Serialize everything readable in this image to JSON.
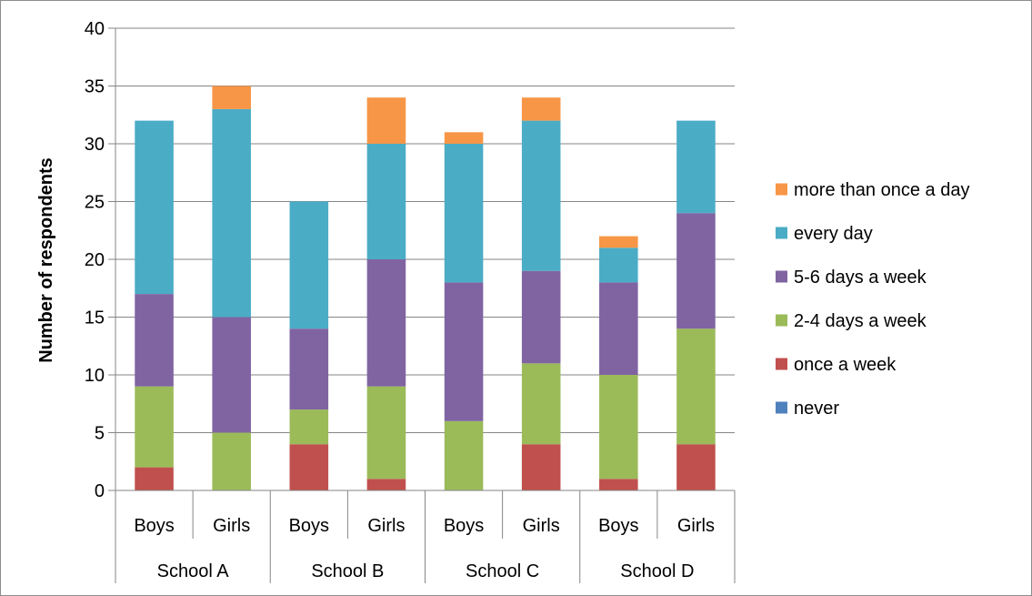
{
  "chart_data": {
    "type": "bar",
    "stacked": true,
    "title": "",
    "xlabel": "",
    "ylabel": "Number of respondents",
    "ylim": [
      0,
      40
    ],
    "yticks": [
      0,
      5,
      10,
      15,
      20,
      25,
      30,
      35,
      40
    ],
    "grid": true,
    "legend_position": "right",
    "groups": [
      {
        "label": "School A",
        "categories": [
          "Boys",
          "Girls"
        ]
      },
      {
        "label": "School B",
        "categories": [
          "Boys",
          "Girls"
        ]
      },
      {
        "label": "School C",
        "categories": [
          "Boys",
          "Girls"
        ]
      },
      {
        "label": "School D",
        "categories": [
          "Boys",
          "Girls"
        ]
      }
    ],
    "series": [
      {
        "name": "never",
        "color": "#4f81bd",
        "values": [
          0,
          0,
          0,
          0,
          0,
          0,
          0,
          0
        ]
      },
      {
        "name": "once a week",
        "color": "#c0504d",
        "values": [
          2,
          0,
          4,
          1,
          0,
          4,
          1,
          4
        ]
      },
      {
        "name": "2-4 days a week",
        "color": "#9bbb59",
        "values": [
          7,
          5,
          3,
          8,
          6,
          7,
          9,
          10
        ]
      },
      {
        "name": "5-6 days a week",
        "color": "#8064a2",
        "values": [
          8,
          10,
          7,
          11,
          12,
          8,
          8,
          10
        ]
      },
      {
        "name": "every day",
        "color": "#4bacc6",
        "values": [
          15,
          18,
          11,
          10,
          12,
          13,
          3,
          8
        ]
      },
      {
        "name": "more than once a day",
        "color": "#f79646",
        "values": [
          0,
          2,
          0,
          4,
          1,
          2,
          1,
          0
        ]
      }
    ]
  }
}
